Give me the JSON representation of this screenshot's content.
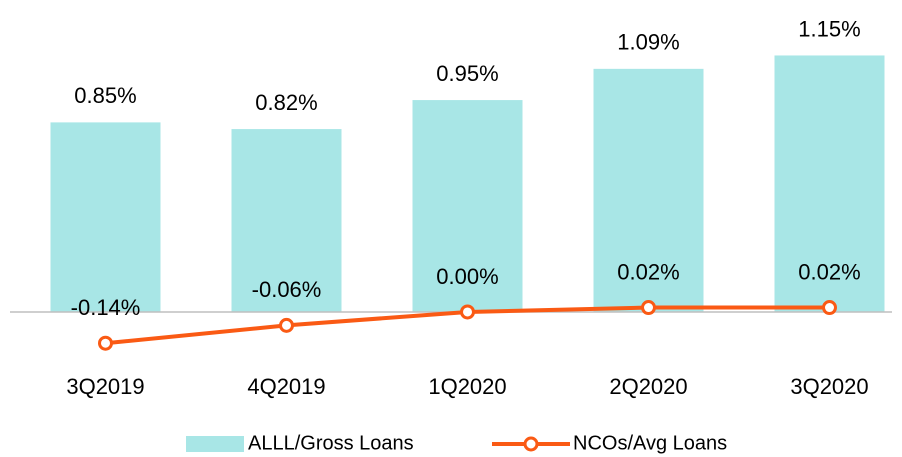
{
  "chart_data": {
    "type": "bar-line",
    "categories": [
      "3Q2019",
      "4Q2019",
      "1Q2020",
      "2Q2020",
      "3Q2020"
    ],
    "series": [
      {
        "name": "ALLL/Gross Loans",
        "type": "bar",
        "color": "#a8e6e6",
        "values": [
          0.85,
          0.82,
          0.95,
          1.09,
          1.15
        ],
        "value_labels": [
          "0.85%",
          "0.82%",
          "0.95%",
          "1.09%",
          "1.15%"
        ]
      },
      {
        "name": "NCOs/Avg Loans",
        "type": "line",
        "color": "#fa5a14",
        "values": [
          -0.14,
          -0.06,
          0.0,
          0.02,
          0.02
        ],
        "value_labels": [
          "-0.14%",
          "-0.06%",
          "0.00%",
          "0.02%",
          "0.02%"
        ]
      }
    ],
    "ylim": [
      -0.2,
      1.3
    ]
  }
}
